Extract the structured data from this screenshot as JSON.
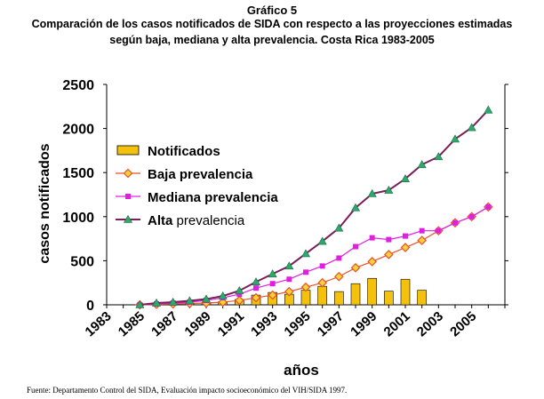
{
  "header": {
    "label": "Gráfico 5",
    "title_line1": "Comparación de los casos notificados de SIDA con respecto a las proyecciones estimadas",
    "title_line2": "según baja, mediana y alta prevalencia. Costa Rica 1983-2005"
  },
  "footer": {
    "source": "Fuente: Departamento Control del SIDA, Evaluación impacto socioeconómico del VIH/SIDA 1997."
  },
  "chart_data": {
    "type": "bar+line",
    "xlabel": "años",
    "ylabel": "casos notificados",
    "ylim": [
      0,
      2500
    ],
    "yticks": [
      0,
      500,
      1000,
      1500,
      2000,
      2500
    ],
    "xtick_labels": [
      "1983",
      "1985",
      "1987",
      "1989",
      "1991",
      "1993",
      "1995",
      "1997",
      "1999",
      "2001",
      "2003",
      "2005"
    ],
    "legend_position": "left",
    "series": [
      {
        "name": "Notificados",
        "kind": "bar",
        "color": "#F4C20D",
        "x": [
          1987,
          1988,
          1989,
          1990,
          1991,
          1992,
          1993,
          1994,
          1995,
          1996,
          1997,
          1998,
          1999,
          2000,
          2001,
          2002
        ],
        "values": [
          15,
          20,
          25,
          35,
          60,
          110,
          140,
          120,
          165,
          210,
          150,
          240,
          300,
          155,
          290,
          165
        ]
      },
      {
        "name": "Baja prevalencia",
        "kind": "line",
        "color": "#E8512A",
        "marker": "diamond",
        "x": [
          1985,
          1986,
          1987,
          1988,
          1989,
          1990,
          1991,
          1992,
          1993,
          1994,
          1995,
          1996,
          1997,
          1998,
          1999,
          2000,
          2001,
          2002,
          2003,
          2004,
          2005,
          2006
        ],
        "values": [
          0,
          5,
          10,
          15,
          20,
          30,
          50,
          80,
          110,
          150,
          200,
          250,
          320,
          420,
          490,
          570,
          650,
          730,
          840,
          930,
          1000,
          1110
        ]
      },
      {
        "name": "Mediana prevalencia",
        "kind": "line",
        "color": "#E020E0",
        "marker": "square",
        "x": [
          1985,
          1986,
          1987,
          1988,
          1989,
          1990,
          1991,
          1992,
          1993,
          1994,
          1995,
          1996,
          1997,
          1998,
          1999,
          2000,
          2001,
          2002,
          2003,
          2004,
          2005,
          2006
        ],
        "values": [
          0,
          10,
          20,
          30,
          50,
          80,
          120,
          190,
          240,
          290,
          370,
          440,
          530,
          660,
          760,
          740,
          780,
          840,
          840,
          930,
          1000,
          1110
        ]
      },
      {
        "name": "Alta prevalencia",
        "kind": "line",
        "color": "#7A1F5A",
        "marker": "triangle",
        "marker_color": "#2EA86B",
        "x": [
          1985,
          1986,
          1987,
          1988,
          1989,
          1990,
          1991,
          1992,
          1993,
          1994,
          1995,
          1996,
          1997,
          1998,
          1999,
          2000,
          2001,
          2002,
          2003,
          2004,
          2005,
          2006
        ],
        "values": [
          0,
          20,
          30,
          45,
          65,
          100,
          160,
          260,
          350,
          440,
          580,
          720,
          870,
          1100,
          1260,
          1300,
          1430,
          1590,
          1680,
          1880,
          2010,
          2210
        ]
      }
    ]
  }
}
